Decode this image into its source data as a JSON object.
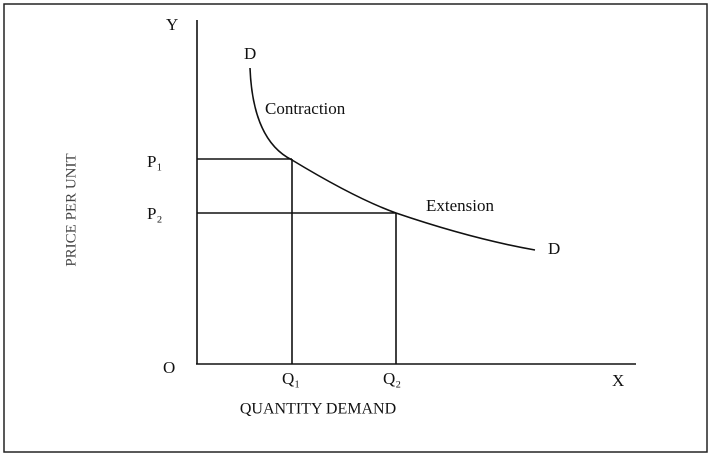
{
  "axes": {
    "y_label": "Y",
    "x_label": "X",
    "origin": "O",
    "y_title": "PRICE PER UNIT",
    "x_title": "QUANTITY DEMAND"
  },
  "curve": {
    "start_label": "D",
    "end_label": "D"
  },
  "annotations": {
    "contraction": "Contraction",
    "extension": "Extension"
  },
  "prices": [
    "P₁",
    "P₂"
  ],
  "quantities": [
    "Q₁",
    "Q₂"
  ]
}
